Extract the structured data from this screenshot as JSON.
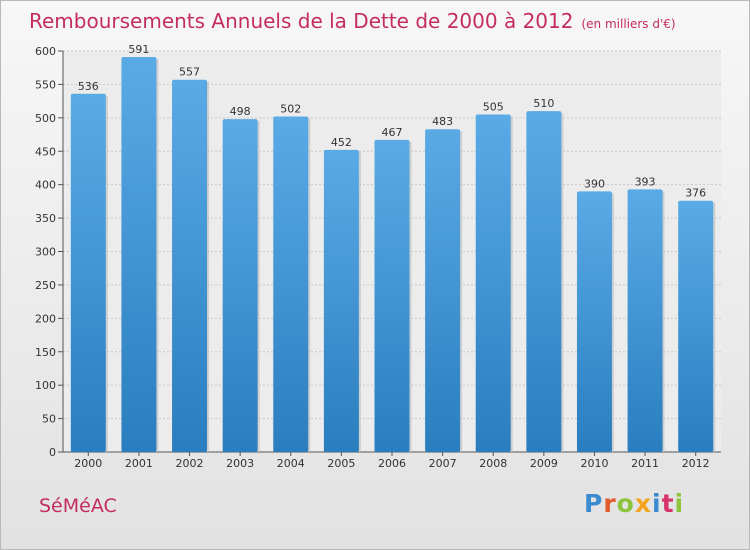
{
  "title": "Remboursements Annuels de la Dette de 2000 à 2012",
  "subtitle": "(en milliers d'€)",
  "commune": "SéMéAC",
  "logo": {
    "text": "Proxiti",
    "letter_colors": [
      "#3a8bd0",
      "#e25b2a",
      "#8cc43c",
      "#f3a41c",
      "#3a8bd0",
      "#d6336c",
      "#8cc43c"
    ]
  },
  "colors": {
    "bar_top": "#5aaae6",
    "bar_bottom": "#2a7ebf",
    "title": "#c42c62"
  },
  "chart_data": {
    "type": "bar",
    "title": "Remboursements Annuels de la Dette de 2000 à 2012",
    "categories": [
      "2000",
      "2001",
      "2002",
      "2003",
      "2004",
      "2005",
      "2006",
      "2007",
      "2008",
      "2009",
      "2010",
      "2011",
      "2012"
    ],
    "values": [
      536,
      591,
      557,
      498,
      502,
      452,
      467,
      483,
      505,
      510,
      390,
      393,
      376
    ],
    "ylim": [
      0,
      600
    ],
    "yticks": [
      0,
      50,
      100,
      150,
      200,
      250,
      300,
      350,
      400,
      450,
      500,
      550,
      600
    ],
    "grid": true
  }
}
